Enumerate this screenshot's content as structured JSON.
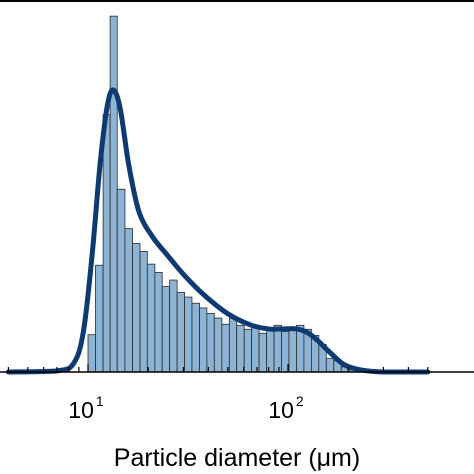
{
  "chart_data": {
    "type": "bar",
    "subtype": "histogram with density curve",
    "x_scale": "log",
    "xlim": [
      4,
      500
    ],
    "xlabel": "Particle diameter (μm)",
    "x_tick_labels": [
      {
        "value": 10,
        "base": "10",
        "exp": "1"
      },
      {
        "value": 100,
        "base": "10",
        "exp": "2"
      }
    ],
    "ylabel": "",
    "y_axis_shown": false,
    "ylim": [
      0,
      1.0
    ],
    "grid": false,
    "legend": "none",
    "bins": [
      {
        "x0": 10.0,
        "x1": 10.9,
        "value": 0.103
      },
      {
        "x0": 10.9,
        "x1": 11.9,
        "value": 0.295
      },
      {
        "x0": 11.9,
        "x1": 12.9,
        "value": 0.711
      },
      {
        "x0": 12.9,
        "x1": 14.0,
        "value": 0.983
      },
      {
        "x0": 14.0,
        "x1": 15.3,
        "value": 0.505
      },
      {
        "x0": 15.3,
        "x1": 16.7,
        "value": 0.396
      },
      {
        "x0": 16.7,
        "x1": 18.2,
        "value": 0.355
      },
      {
        "x0": 18.2,
        "x1": 19.8,
        "value": 0.333
      },
      {
        "x0": 19.8,
        "x1": 21.6,
        "value": 0.298
      },
      {
        "x0": 21.6,
        "x1": 23.5,
        "value": 0.275
      },
      {
        "x0": 23.5,
        "x1": 25.6,
        "value": 0.236
      },
      {
        "x0": 25.6,
        "x1": 27.9,
        "value": 0.254
      },
      {
        "x0": 27.9,
        "x1": 30.4,
        "value": 0.22
      },
      {
        "x0": 30.4,
        "x1": 33.1,
        "value": 0.207
      },
      {
        "x0": 33.1,
        "x1": 36.1,
        "value": 0.19
      },
      {
        "x0": 36.1,
        "x1": 39.3,
        "value": 0.177
      },
      {
        "x0": 39.3,
        "x1": 42.8,
        "value": 0.162
      },
      {
        "x0": 42.8,
        "x1": 46.7,
        "value": 0.149
      },
      {
        "x0": 46.7,
        "x1": 50.9,
        "value": 0.132
      },
      {
        "x0": 50.9,
        "x1": 55.4,
        "value": 0.149
      },
      {
        "x0": 55.4,
        "x1": 60.4,
        "value": 0.129
      },
      {
        "x0": 60.4,
        "x1": 65.8,
        "value": 0.118
      },
      {
        "x0": 65.8,
        "x1": 71.7,
        "value": 0.129
      },
      {
        "x0": 71.7,
        "x1": 78.2,
        "value": 0.107
      },
      {
        "x0": 78.2,
        "x1": 85.2,
        "value": 0.118
      },
      {
        "x0": 85.2,
        "x1": 92.8,
        "value": 0.129
      },
      {
        "x0": 92.8,
        "x1": 101.1,
        "value": 0.112
      },
      {
        "x0": 101.1,
        "x1": 110.2,
        "value": 0.118
      },
      {
        "x0": 110.2,
        "x1": 120.1,
        "value": 0.129
      },
      {
        "x0": 120.1,
        "x1": 130.9,
        "value": 0.118
      },
      {
        "x0": 130.9,
        "x1": 142.6,
        "value": 0.101
      },
      {
        "x0": 142.6,
        "x1": 155.4,
        "value": 0.076
      },
      {
        "x0": 155.4,
        "x1": 169.4,
        "value": 0.037
      },
      {
        "x0": 169.4,
        "x1": 184.6,
        "value": 0.031
      },
      {
        "x0": 184.6,
        "x1": 201.2,
        "value": 0.014
      },
      {
        "x0": 201.2,
        "x1": 219.2,
        "value": 0.006
      }
    ],
    "curve": {
      "x": [
        4,
        7,
        8.5,
        9.5,
        10.5,
        11.5,
        12.5,
        13.4,
        14.5,
        16,
        18,
        21,
        25,
        30,
        38,
        50,
        65,
        80,
        95,
        110,
        125,
        140,
        160,
        190,
        230,
        300,
        500
      ],
      "y": [
        0.0,
        0.003,
        0.025,
        0.114,
        0.327,
        0.576,
        0.737,
        0.779,
        0.727,
        0.571,
        0.442,
        0.374,
        0.322,
        0.27,
        0.213,
        0.161,
        0.13,
        0.119,
        0.119,
        0.119,
        0.109,
        0.088,
        0.057,
        0.021,
        0.006,
        0.0,
        0.0
      ]
    },
    "colors": {
      "bar_fill": "#8db3d5",
      "bar_edge": "#2b2b2b",
      "curve": "#0e3a72",
      "axis": "#000000"
    }
  }
}
